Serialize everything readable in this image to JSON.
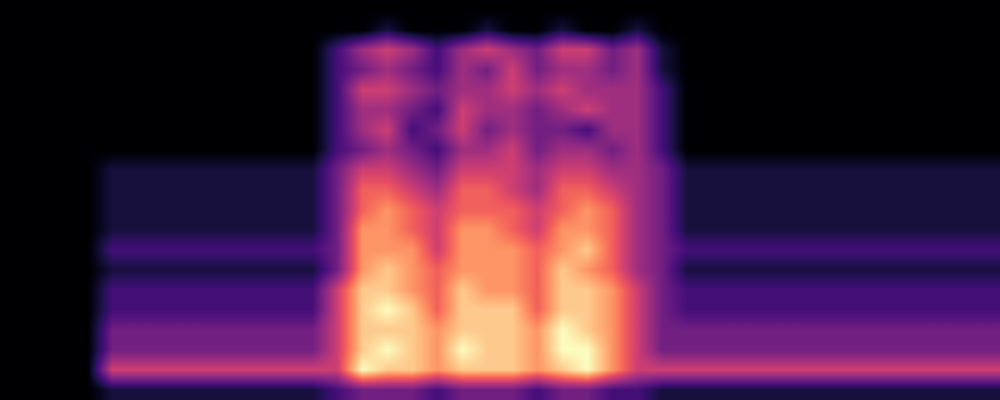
{
  "chart_data": {
    "type": "heatmap",
    "tick_labels": false,
    "color": "magma",
    "cells": [
      [
        0,
        0,
        0,
        0,
        0,
        0,
        0,
        0,
        0,
        0,
        0,
        0,
        0,
        0,
        0,
        0,
        0,
        0,
        0,
        0,
        0,
        0,
        0,
        0,
        0,
        0,
        0,
        0,
        0,
        0,
        0,
        0,
        0,
        0,
        0,
        0,
        0,
        0,
        0,
        0
      ],
      [
        0,
        0,
        0,
        0,
        0,
        0,
        0,
        0,
        0,
        0,
        0,
        0,
        0,
        0,
        0,
        1,
        0,
        0,
        0,
        1,
        0,
        0,
        1,
        0,
        0,
        1,
        0,
        0,
        0,
        0,
        0,
        0,
        0,
        0,
        0,
        0,
        0,
        0,
        0,
        0
      ],
      [
        0,
        0,
        0,
        0,
        0,
        0,
        0,
        0,
        0,
        0,
        0,
        0,
        0,
        2,
        4,
        5,
        4,
        2,
        4,
        5,
        4,
        3,
        5,
        5,
        3,
        4,
        1,
        0,
        0,
        0,
        0,
        0,
        0,
        0,
        0,
        0,
        0,
        0,
        0,
        0
      ],
      [
        0,
        0,
        0,
        0,
        0,
        0,
        0,
        0,
        0,
        0,
        0,
        0,
        0,
        2,
        3,
        4,
        3,
        2,
        4,
        3,
        5,
        3,
        4,
        4,
        3,
        4,
        1,
        0,
        0,
        0,
        0,
        0,
        0,
        0,
        0,
        0,
        0,
        0,
        0,
        0
      ],
      [
        0,
        0,
        0,
        0,
        0,
        0,
        0,
        0,
        0,
        0,
        0,
        0,
        0,
        2,
        5,
        5,
        4,
        3,
        4,
        4,
        5,
        4,
        5,
        4,
        4,
        4,
        2,
        0,
        0,
        0,
        0,
        0,
        0,
        0,
        0,
        0,
        0,
        0,
        0,
        0
      ],
      [
        0,
        0,
        0,
        0,
        0,
        0,
        0,
        0,
        0,
        0,
        0,
        0,
        0,
        2,
        4,
        4,
        3,
        2,
        5,
        4,
        4,
        3,
        4,
        5,
        4,
        4,
        2,
        0,
        0,
        0,
        0,
        0,
        0,
        0,
        0,
        0,
        0,
        0,
        0,
        0
      ],
      [
        0,
        0,
        0,
        0,
        0,
        0,
        0,
        0,
        0,
        0,
        0,
        0,
        0,
        2,
        4,
        5,
        2,
        3,
        5,
        3,
        4,
        3,
        3,
        2,
        4,
        4,
        2,
        0,
        0,
        0,
        0,
        0,
        0,
        0,
        0,
        0,
        0,
        0,
        0,
        0
      ],
      [
        0,
        0,
        0,
        0,
        0,
        0,
        0,
        0,
        0,
        0,
        0,
        0,
        0,
        2,
        3,
        4,
        3,
        2,
        4,
        4,
        5,
        3,
        4,
        4,
        3,
        4,
        2,
        0,
        0,
        0,
        0,
        0,
        0,
        0,
        0,
        0,
        0,
        0,
        0,
        0
      ],
      [
        0,
        0,
        0,
        0,
        1,
        1,
        1,
        1,
        1,
        1,
        1,
        1,
        1,
        3,
        5,
        5,
        4,
        3,
        5,
        5,
        5,
        4,
        5,
        5,
        4,
        4,
        3,
        1,
        1,
        1,
        1,
        1,
        1,
        1,
        1,
        1,
        1,
        1,
        1,
        1
      ],
      [
        0,
        0,
        0,
        0,
        1,
        1,
        1,
        1,
        1,
        1,
        1,
        1,
        1,
        3,
        6,
        6,
        5,
        4,
        6,
        6,
        5,
        4,
        6,
        6,
        5,
        4,
        3,
        1,
        1,
        1,
        1,
        1,
        1,
        1,
        1,
        1,
        1,
        1,
        1,
        1
      ],
      [
        0,
        0,
        0,
        0,
        1,
        1,
        1,
        1,
        1,
        1,
        1,
        1,
        1,
        3,
        6,
        7,
        6,
        5,
        6,
        6,
        6,
        5,
        6,
        7,
        6,
        4,
        3,
        1,
        1,
        1,
        1,
        1,
        1,
        1,
        1,
        1,
        1,
        1,
        1,
        1
      ],
      [
        0,
        0,
        0,
        0,
        1,
        1,
        1,
        1,
        1,
        1,
        1,
        1,
        1,
        3,
        7,
        7,
        6,
        5,
        7,
        7,
        6,
        5,
        7,
        7,
        6,
        4,
        3,
        1,
        1,
        1,
        1,
        1,
        1,
        1,
        1,
        1,
        1,
        1,
        1,
        1
      ],
      [
        0,
        0,
        0,
        0,
        2,
        2,
        2,
        2,
        2,
        2,
        2,
        2,
        2,
        3,
        7,
        7,
        7,
        5,
        7,
        7,
        7,
        6,
        7,
        8,
        6,
        4,
        3,
        2,
        2,
        2,
        2,
        2,
        2,
        2,
        2,
        2,
        2,
        2,
        2,
        2
      ],
      [
        0,
        0,
        0,
        0,
        1,
        1,
        1,
        1,
        1,
        1,
        1,
        1,
        1,
        3,
        7,
        8,
        7,
        6,
        7,
        7,
        7,
        6,
        8,
        7,
        6,
        4,
        3,
        1,
        1,
        1,
        1,
        1,
        1,
        1,
        1,
        1,
        1,
        1,
        1,
        1
      ],
      [
        0,
        0,
        0,
        0,
        2,
        2,
        2,
        2,
        2,
        2,
        2,
        2,
        2,
        5,
        8,
        8,
        7,
        6,
        8,
        7,
        7,
        6,
        8,
        8,
        7,
        5,
        3,
        2,
        2,
        2,
        2,
        2,
        2,
        2,
        2,
        2,
        2,
        2,
        2,
        2
      ],
      [
        0,
        0,
        0,
        0,
        2,
        2,
        2,
        2,
        2,
        2,
        2,
        2,
        2,
        5,
        8,
        9,
        8,
        6,
        8,
        8,
        8,
        6,
        8,
        8,
        7,
        5,
        3,
        2,
        2,
        2,
        2,
        2,
        2,
        2,
        2,
        2,
        2,
        2,
        2,
        2
      ],
      [
        0,
        0,
        0,
        0,
        3,
        3,
        3,
        3,
        3,
        3,
        3,
        3,
        3,
        5,
        8,
        8,
        8,
        7,
        8,
        8,
        8,
        7,
        9,
        8,
        7,
        5,
        3,
        3,
        3,
        3,
        3,
        3,
        3,
        3,
        3,
        3,
        3,
        3,
        3,
        3
      ],
      [
        0,
        0,
        0,
        0,
        3,
        3,
        3,
        3,
        3,
        3,
        3,
        3,
        3,
        5,
        8,
        9,
        8,
        7,
        9,
        8,
        8,
        7,
        9,
        9,
        7,
        5,
        3,
        3,
        3,
        3,
        3,
        3,
        3,
        3,
        3,
        3,
        3,
        3,
        3,
        3
      ],
      [
        0,
        0,
        0,
        0,
        5,
        5,
        5,
        5,
        5,
        5,
        5,
        5,
        5,
        5,
        9,
        8,
        8,
        7,
        8,
        8,
        8,
        7,
        8,
        9,
        7,
        5,
        5,
        5,
        5,
        5,
        5,
        5,
        5,
        5,
        5,
        5,
        5,
        5,
        5,
        5
      ],
      [
        0,
        0,
        0,
        0,
        1,
        1,
        1,
        1,
        1,
        1,
        1,
        1,
        1,
        2,
        3,
        3,
        3,
        2,
        3,
        3,
        3,
        2,
        3,
        3,
        2,
        2,
        1,
        1,
        1,
        1,
        1,
        1,
        1,
        1,
        1,
        1,
        1,
        1,
        1,
        1
      ]
    ]
  }
}
